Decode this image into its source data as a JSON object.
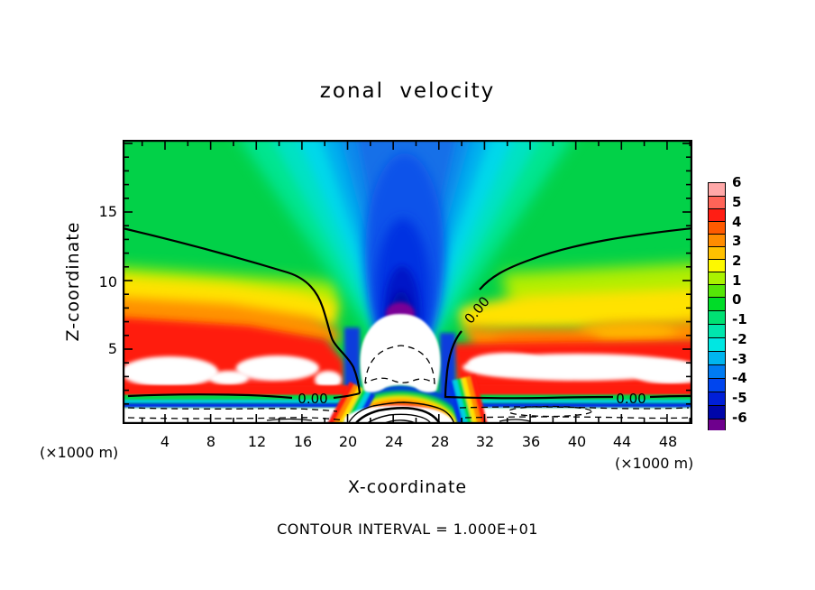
{
  "title": "zonal velocity",
  "footer": {
    "contour_interval": "CONTOUR INTERVAL = 1.000E+01"
  },
  "axes": {
    "x_label": "X-coordinate",
    "y_label": "Z-coordinate",
    "x_unit_left": "(×1000 m)",
    "x_unit_right": "(×1000 m)",
    "x_tick_labels": [
      "4",
      "8",
      "12",
      "16",
      "20",
      "24",
      "28",
      "32",
      "36",
      "40",
      "44",
      "48"
    ],
    "y_tick_labels": [
      "15",
      "10",
      "5"
    ]
  },
  "colorbar": {
    "tick_labels": [
      "6",
      "5",
      "4",
      "3",
      "2",
      "1",
      "0",
      "-1",
      "-2",
      "-3",
      "-4",
      "-5",
      "-6"
    ],
    "cell_colors": [
      "#ffa8a8",
      "#ff6458",
      "#ff1e14",
      "#ff5a00",
      "#ff8c00",
      "#ffc100",
      "#fdf900",
      "#aaf200",
      "#55e607",
      "#00dc28",
      "#00e173",
      "#00e6ad",
      "#00e7e2",
      "#00b5ef",
      "#007bf2",
      "#0045ee",
      "#001fd7",
      "#0006a9",
      "#6e008d"
    ]
  },
  "contour_labels": {
    "upper_right": "0.00",
    "lower_left": "0.00",
    "lower_right": "0.00"
  },
  "chart_data": {
    "type": "filled_contour",
    "title": "zonal velocity",
    "xlabel": "X-coordinate (×1000 m)",
    "ylabel": "Z-coordinate (×1000 m)",
    "xlim": [
      0,
      50
    ],
    "ylim": [
      0,
      20
    ],
    "x_ticks": [
      4,
      8,
      12,
      16,
      20,
      24,
      28,
      32,
      36,
      40,
      44,
      48
    ],
    "x_minor_tick_step": 2,
    "y_ticks": [
      5,
      10,
      15
    ],
    "y_minor_tick_step": 1,
    "fill_levels": [
      -6,
      -5,
      -4,
      -3,
      -2,
      -1,
      0,
      1,
      2,
      3,
      4,
      5,
      6
    ],
    "fill_palette_top_to_bottom": [
      "#ffa8a8",
      "#ff6458",
      "#ff1e14",
      "#ff5a00",
      "#ff8c00",
      "#ffc100",
      "#fdf900",
      "#aaf200",
      "#55e607",
      "#00dc28",
      "#00e173",
      "#00e6ad",
      "#00e7e2",
      "#00b5ef",
      "#007bf2",
      "#0045ee",
      "#001fd7",
      "#0006a9",
      "#6e008d"
    ],
    "line_contour_interval": 10,
    "line_contour_style": {
      "positive": "solid",
      "negative": "dashed"
    },
    "zero_contour_line_labels": [
      {
        "label": "0.00",
        "x": 31.5,
        "z": 7.8,
        "rotated": true
      },
      {
        "label": "0.00",
        "x": 17.0,
        "z": 1.4,
        "rotated": false
      },
      {
        "label": "0.00",
        "x": 44.8,
        "z": 1.4,
        "rotated": false
      }
    ],
    "features": [
      "Broad fan-shaped negative (blue) plume centered near x=25 extending from the model top down to z≈8",
      "Strong positive low-level jets (yellow-orange-red) near z≈2-5 on both sides of the center; jet cores exceed +6 and are shown white",
      "White dome of flow below -6 capped by a dashed -10 contour sits above the mountain near x=22-27, z=3-7, with a small purple (-6) patch at its top",
      "Thin shallow surface layer with flow below -6 (white, with dashed -10 contours) along the bottom on both sides",
      "Closed solid contours (+10, +20, +30) of a strong downslope wind maximum at the surface near x=24",
      "Solid 0.00 contour separates the central negative plume from the positive flanking flow"
    ],
    "estimated_field": {
      "note": "values estimated from fill colors; |v|>6 regions are rendered white in the plot",
      "x": [
        2,
        6,
        10,
        14,
        18,
        22,
        26,
        30,
        34,
        38,
        42,
        46,
        50
      ],
      "z_rows_top_to_bottom": [
        19,
        17,
        15,
        13,
        11,
        9,
        7,
        5,
        3,
        1
      ],
      "values": [
        [
          0.8,
          0.8,
          0.8,
          0.8,
          0.3,
          -1.5,
          -3.5,
          -1.5,
          0.3,
          0.8,
          0.8,
          0.8,
          0.8
        ],
        [
          0.8,
          0.8,
          0.8,
          0.8,
          0.2,
          -2,
          -4,
          -2,
          0.2,
          0.8,
          0.8,
          0.8,
          0.8
        ],
        [
          0.7,
          0.8,
          0.8,
          0.8,
          0,
          -2.5,
          -4.5,
          -2.5,
          0,
          0.8,
          0.8,
          0.8,
          0.7
        ],
        [
          0.5,
          0.8,
          1,
          1,
          0,
          -3,
          -5,
          -3,
          0.2,
          1,
          1,
          0.8,
          0.5
        ],
        [
          0.5,
          1,
          1.2,
          1.2,
          0.5,
          -3.5,
          -5.5,
          -3.5,
          0.8,
          1.5,
          1.5,
          1,
          0.8
        ],
        [
          1.5,
          1.5,
          1.8,
          2,
          1.2,
          -4,
          -6,
          -4,
          1.5,
          2.2,
          2.2,
          2,
          1.5
        ],
        [
          3,
          2.8,
          3,
          3.2,
          2.5,
          -4.5,
          -6.5,
          -4.5,
          3,
          3.5,
          3.2,
          3,
          2.8
        ],
        [
          5.5,
          6.5,
          5.5,
          6.5,
          4.5,
          -5,
          -7,
          -5,
          5.5,
          6.8,
          6.2,
          5.8,
          4.8
        ],
        [
          6.8,
          7.2,
          6.8,
          7,
          6,
          -9,
          -11,
          -9,
          6.8,
          7.2,
          6.8,
          6.8,
          6.2
        ],
        [
          -8,
          -10,
          -10,
          -9,
          -6,
          6,
          28,
          6,
          -6,
          -10,
          -10,
          -9,
          -8
        ]
      ]
    }
  }
}
